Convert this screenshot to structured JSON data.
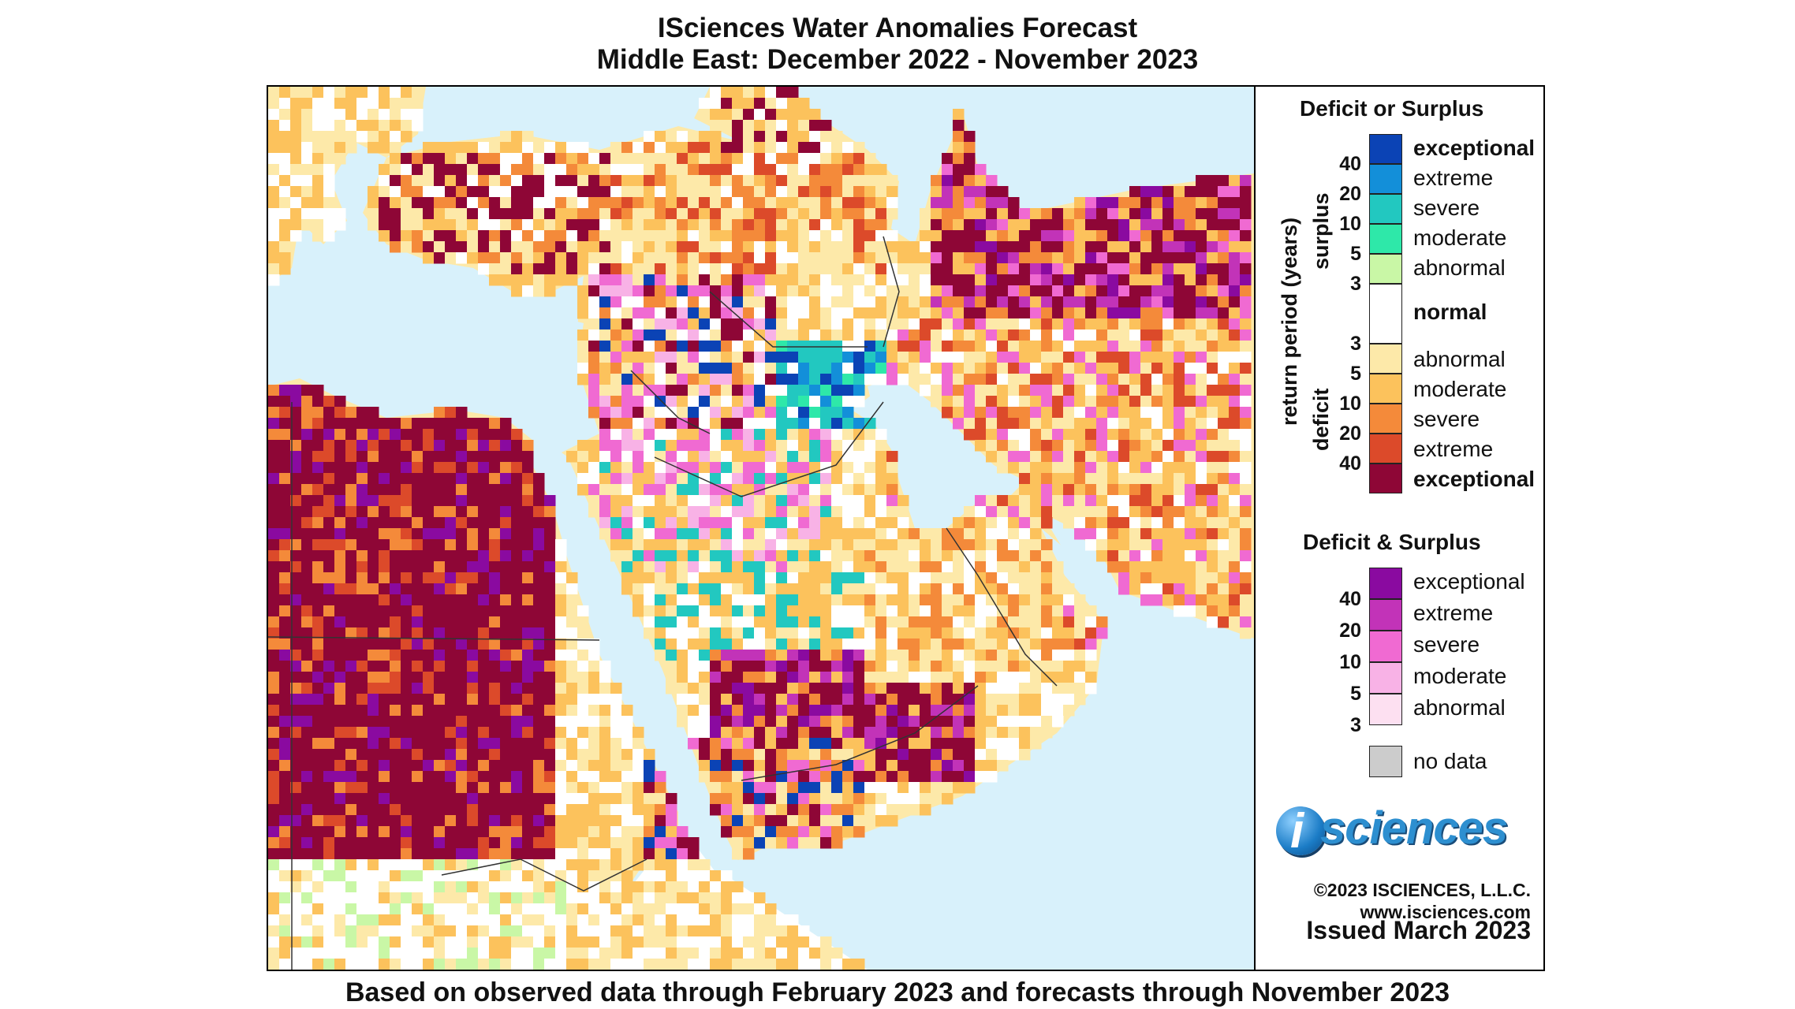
{
  "title": {
    "line1": "ISciences Water Anomalies Forecast",
    "line2": "Middle East: December 2022 - November 2023"
  },
  "footer": "Based on observed data through February 2023 and forecasts through November 2023",
  "legend": {
    "heading1": "Deficit or Surplus",
    "surplus_label": "surplus",
    "deficit_label": "deficit",
    "axis_label": "return period (years)",
    "surplus_classes": [
      {
        "label": "exceptional",
        "color": "#0b43b5",
        "bold": true
      },
      {
        "label": "extreme",
        "color": "#138fd9",
        "bold": false
      },
      {
        "label": "severe",
        "color": "#22c8c0",
        "bold": false
      },
      {
        "label": "moderate",
        "color": "#2ee8a9",
        "bold": false
      },
      {
        "label": "abnormal",
        "color": "#c9f7a6",
        "bold": false
      }
    ],
    "normal": {
      "label": "normal",
      "color": "#ffffff"
    },
    "deficit_classes": [
      {
        "label": "abnormal",
        "color": "#fde9a9",
        "bold": false
      },
      {
        "label": "moderate",
        "color": "#fcc25c",
        "bold": false
      },
      {
        "label": "severe",
        "color": "#f48a3a",
        "bold": false
      },
      {
        "label": "extreme",
        "color": "#dc4a2a",
        "bold": false
      },
      {
        "label": "exceptional",
        "color": "#8e0636",
        "bold": true
      }
    ],
    "return_periods_surplus": [
      "40",
      "20",
      "10",
      "5",
      "3"
    ],
    "return_periods_deficit": [
      "3",
      "5",
      "10",
      "20",
      "40"
    ],
    "heading2": "Deficit & Surplus",
    "both_classes": [
      {
        "label": "exceptional",
        "color": "#8a0aa0"
      },
      {
        "label": "extreme",
        "color": "#c233b8"
      },
      {
        "label": "severe",
        "color": "#f06ad2"
      },
      {
        "label": "moderate",
        "color": "#f8b2e6"
      },
      {
        "label": "abnormal",
        "color": "#fde0f1"
      }
    ],
    "return_periods_both": [
      "40",
      "20",
      "10",
      "5",
      "3"
    ],
    "no_data": {
      "label": "no data",
      "color": "#cccccc"
    },
    "logo": "isciences",
    "copyright": "©2023 ISCIENCES, L.L.C.",
    "website": "www.isciences.com",
    "issued": "Issued March 2023"
  },
  "map": {
    "water_color": "#d8f1fb",
    "land_base_color": "#fde9a9"
  }
}
